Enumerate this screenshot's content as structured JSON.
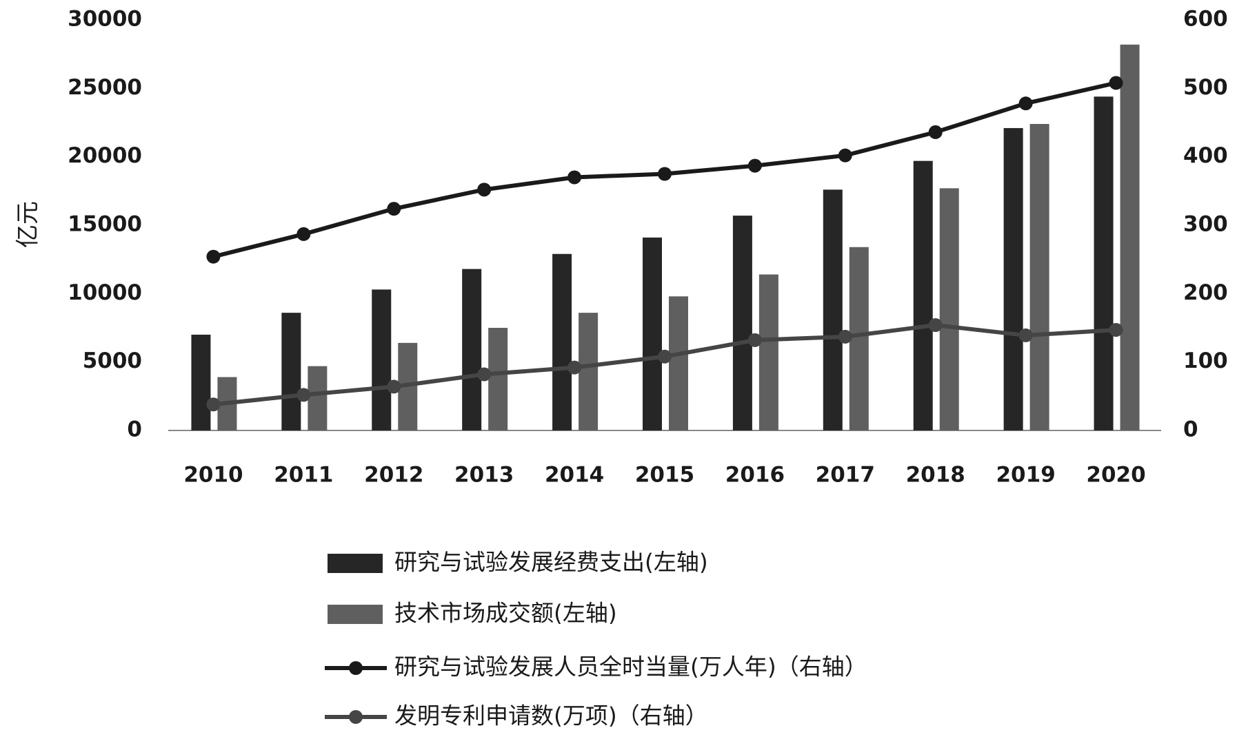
{
  "chart_data": {
    "type": "bar",
    "y_label": "亿元",
    "categories": [
      "2010",
      "2011",
      "2012",
      "2013",
      "2014",
      "2015",
      "2016",
      "2017",
      "2018",
      "2019",
      "2020"
    ],
    "series": [
      {
        "name": "研究与试验发展经费支出(左轴)",
        "type": "bar",
        "color": "#262626",
        "values": [
          7000,
          8600,
          10300,
          11800,
          12900,
          14100,
          15700,
          17600,
          19700,
          22100,
          24400
        ]
      },
      {
        "name": "技术市场成交额(左轴)",
        "type": "bar",
        "color": "#5f5f5f",
        "values": [
          3900,
          4700,
          6400,
          7500,
          8600,
          9800,
          11400,
          13400,
          17700,
          22400,
          28200
        ]
      },
      {
        "name": "研究与试验发展人员全时当量(万人年)（右轴）",
        "type": "line",
        "axis": "y2",
        "color": "#1a1a1a",
        "values": [
          254,
          287,
          324,
          352,
          370,
          375,
          387,
          402,
          436,
          478,
          508
        ]
      },
      {
        "name": "发明专利申请数(万项)（右轴）",
        "type": "line",
        "axis": "y2",
        "color": "#454545",
        "values": [
          38,
          52,
          64,
          82,
          92,
          108,
          132,
          137,
          154,
          139,
          147
        ]
      }
    ],
    "ylim": [
      0,
      30000
    ],
    "yticks": [
      0,
      5000,
      10000,
      15000,
      20000,
      25000,
      30000
    ],
    "y2lim": [
      0,
      600
    ],
    "y2ticks": [
      0,
      100,
      200,
      300,
      400,
      500,
      600
    ]
  }
}
